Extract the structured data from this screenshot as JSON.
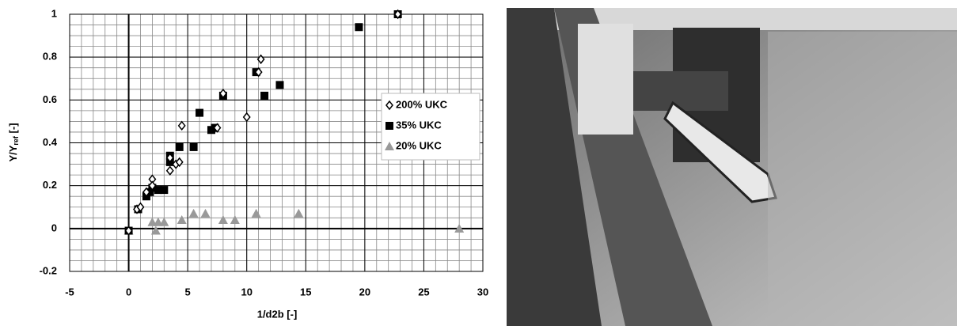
{
  "chart_data": {
    "type": "scatter",
    "xlabel": "1/d2b  [-]",
    "ylabel": {
      "main": "Y/Y",
      "sub": "ref",
      "unit": " [-]"
    },
    "xlim": [
      -5,
      30
    ],
    "xticks": [
      -5,
      0,
      5,
      10,
      15,
      20,
      25,
      30
    ],
    "ylim": [
      -0.2,
      1
    ],
    "yticks": [
      -0.2,
      0,
      0.2,
      0.4,
      0.6,
      0.8,
      1
    ],
    "grid": true,
    "minor_grid": {
      "x": 1,
      "y": 0.05
    },
    "legend": "right",
    "series": [
      {
        "name": "200% UKC",
        "marker": "diamond",
        "color": "#000000",
        "x": [
          0,
          0.7,
          1,
          1.5,
          2,
          2,
          3.5,
          3.5,
          4,
          4.3,
          4.5,
          7.5,
          8,
          10,
          11,
          11.2,
          22.8
        ],
        "values": [
          -0.01,
          0.09,
          0.1,
          0.17,
          0.23,
          0.2,
          0.27,
          0.33,
          0.3,
          0.31,
          0.48,
          0.47,
          0.63,
          0.52,
          0.73,
          0.79,
          1.0
        ]
      },
      {
        "name": "35% UKC",
        "marker": "square",
        "color": "#000000",
        "x": [
          0,
          0.8,
          1.5,
          1.8,
          2,
          2.5,
          3,
          3.5,
          3.5,
          4.3,
          5.5,
          6,
          7,
          7.3,
          8,
          10.8,
          11.5,
          12.8,
          19.5,
          22.8
        ],
        "values": [
          -0.01,
          0.09,
          0.15,
          0.17,
          0.19,
          0.18,
          0.18,
          0.34,
          0.31,
          0.38,
          0.38,
          0.54,
          0.46,
          0.47,
          0.62,
          0.73,
          0.62,
          0.67,
          0.94,
          1.0
        ]
      },
      {
        "name": "20% UKC",
        "marker": "triangle",
        "color": "#999999",
        "x": [
          0,
          2,
          2.3,
          2.5,
          3,
          4.5,
          5.5,
          6.5,
          8,
          9,
          10.8,
          14.4,
          28
        ],
        "values": [
          -0.01,
          0.03,
          -0.01,
          0.03,
          0.03,
          0.04,
          0.07,
          0.07,
          0.04,
          0.04,
          0.07,
          0.07,
          0
        ]
      }
    ]
  }
}
